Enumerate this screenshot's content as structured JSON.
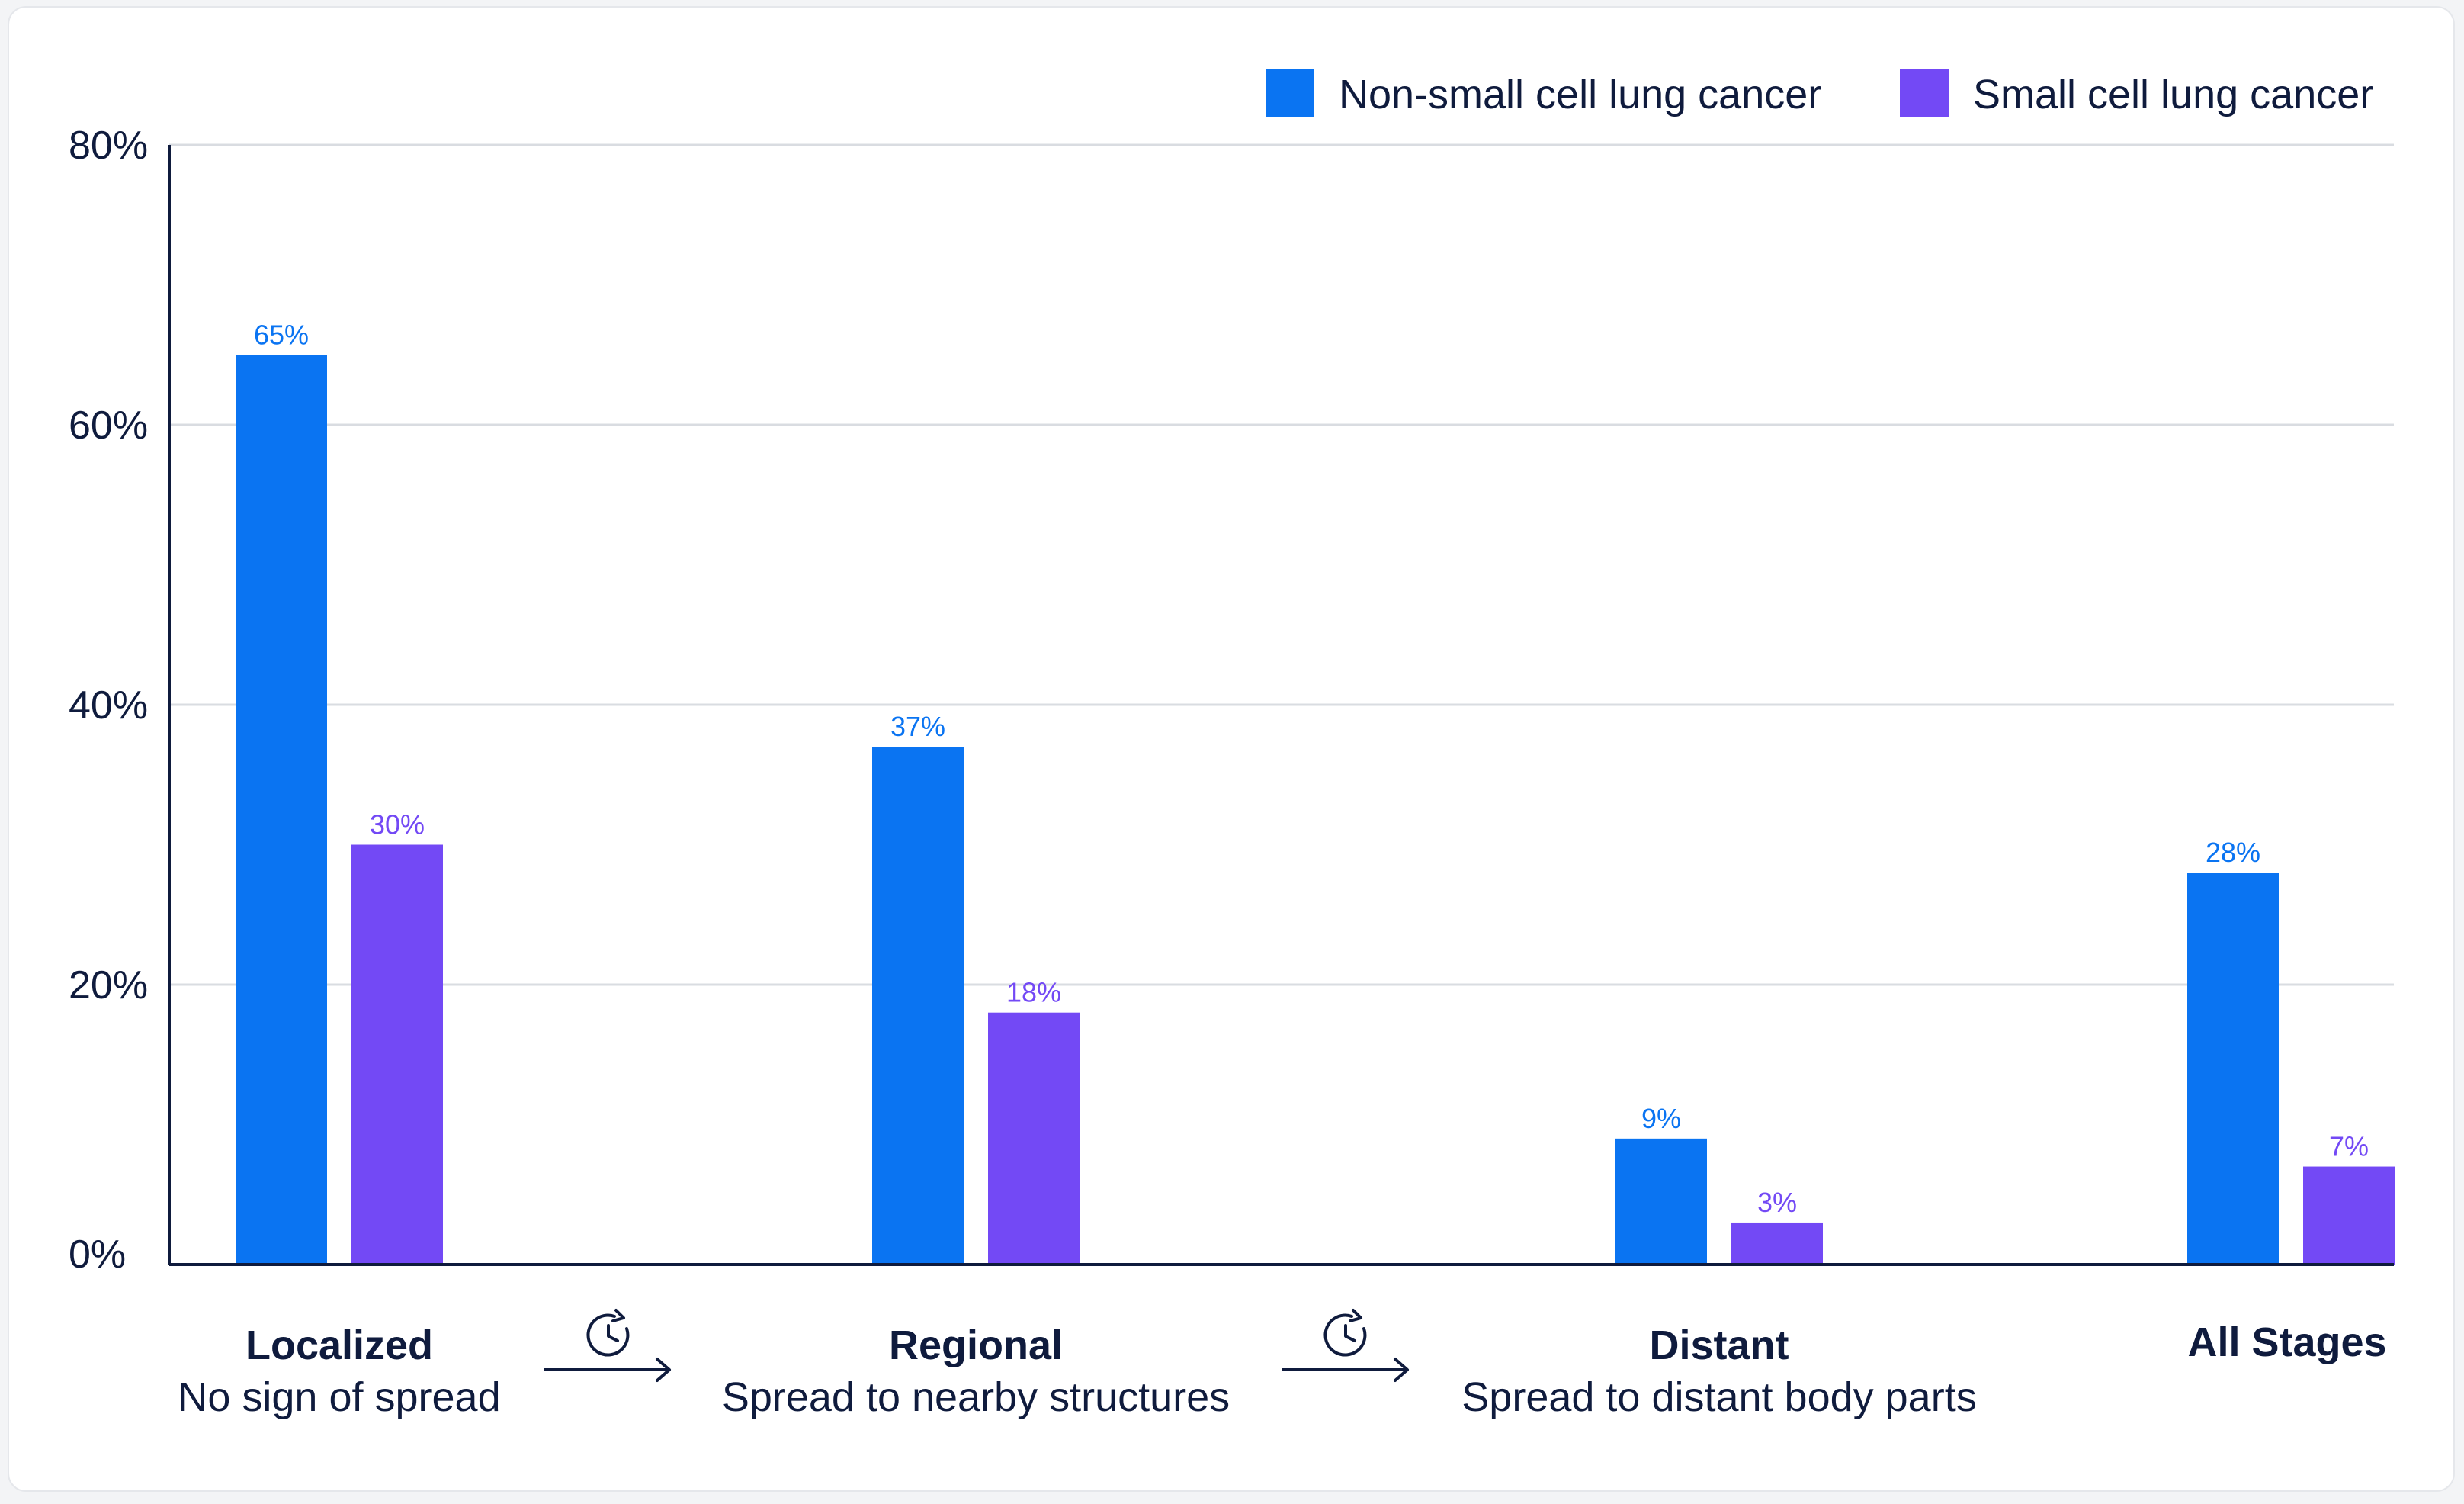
{
  "colors": {
    "series_1": "#0a74f2",
    "series_2": "#7349f5",
    "text": "#0f1b3d",
    "grid": "#d9dce1",
    "axis": "#0f1b3d"
  },
  "legend": {
    "items": [
      {
        "label": "Non-small cell lung cancer",
        "color": "#0a74f2"
      },
      {
        "label": "Small cell lung cancer",
        "color": "#7349f5"
      }
    ]
  },
  "chart_data": {
    "type": "bar",
    "categories": [
      "Localized",
      "Regional",
      "Distant",
      "All Stages"
    ],
    "category_subtitles": [
      "No sign of spread",
      "Spread to nearby structures",
      "Spread to distant body parts",
      ""
    ],
    "series": [
      {
        "name": "Non-small cell lung cancer",
        "values": [
          65,
          37,
          9,
          28
        ],
        "labels": [
          "65%",
          "37%",
          "9%",
          "28%"
        ]
      },
      {
        "name": "Small cell lung cancer",
        "values": [
          30,
          18,
          3,
          7
        ],
        "labels": [
          "30%",
          "18%",
          "3%",
          "7%"
        ]
      }
    ],
    "y_ticks": [
      0,
      20,
      40,
      60,
      80
    ],
    "y_tick_labels": [
      "0%",
      "20%",
      "40%",
      "60%",
      "80%"
    ],
    "ylim": [
      0,
      80
    ],
    "grid": true,
    "legend_position": "top-right",
    "stage_progression_icons": [
      "clock-arrow-icon",
      "clock-arrow-icon"
    ],
    "title": "",
    "xlabel": "",
    "ylabel": ""
  }
}
